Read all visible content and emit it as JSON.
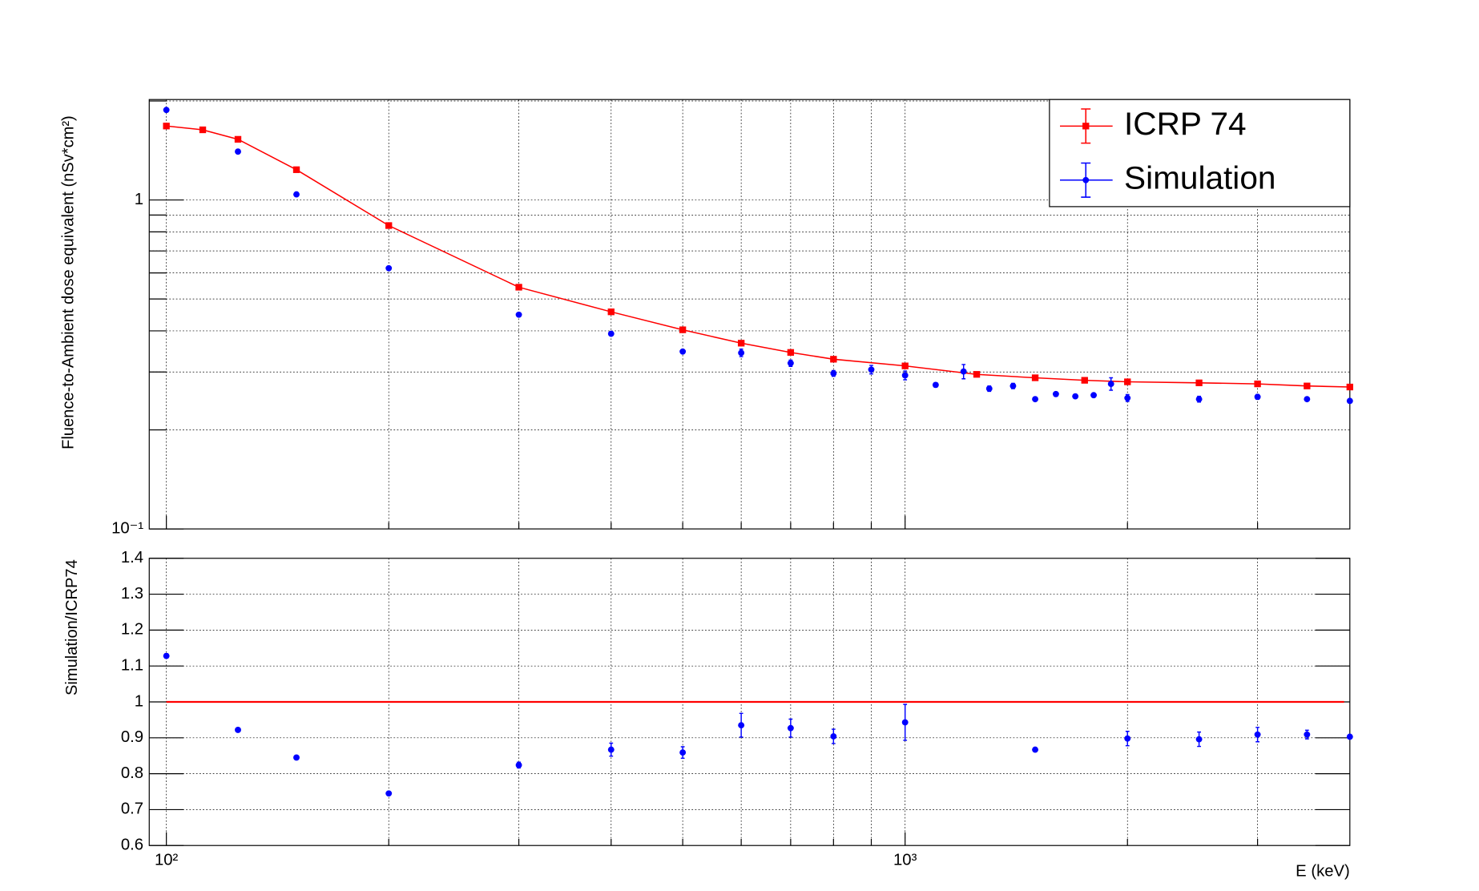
{
  "shared_x": {
    "label": "E (keV)",
    "log": true,
    "xlim": [
      94.8,
      4000
    ],
    "xticks": [
      {
        "value": 100,
        "label": "10²"
      },
      {
        "value": 1000,
        "label": "10³"
      }
    ],
    "xminor": [
      200,
      300,
      400,
      500,
      600,
      700,
      800,
      900,
      2000,
      3000
    ]
  },
  "chart_data": [
    {
      "type": "errorbar",
      "ylabel": "Fluence-to-Ambient dose equivalent (nSv*cm²)",
      "log_y": true,
      "grid": true,
      "legend": "top-right",
      "ylim": [
        0.1,
        2.02
      ],
      "yticks": [
        {
          "value": 0.1,
          "label": "10⁻¹"
        },
        1
      ],
      "yminor": [
        0.2,
        0.3,
        0.4,
        0.5,
        0.6,
        0.7,
        0.8,
        0.9,
        2
      ],
      "series": [
        {
          "name": "ICRP 74",
          "color": "#ff0000",
          "marker": "square",
          "line": true,
          "x": [
            100,
            112,
            125,
            150,
            200,
            300,
            400,
            500,
            600,
            700,
            800,
            1000,
            1250,
            1500,
            1750,
            2000,
            2500,
            3000,
            3500,
            4000
          ],
          "values": [
            1.678,
            1.634,
            1.529,
            1.236,
            0.836,
            0.543,
            0.457,
            0.403,
            0.367,
            0.344,
            0.328,
            0.313,
            0.295,
            0.288,
            0.283,
            0.28,
            0.278,
            0.276,
            0.272,
            0.27
          ]
        },
        {
          "name": "Simulation",
          "color": "#0000ff",
          "marker": "circle",
          "line": false,
          "x": [
            100,
            125,
            150,
            200,
            300,
            400,
            500,
            600,
            700,
            800,
            900,
            1000,
            1100,
            1200,
            1300,
            1400,
            1500,
            1600,
            1700,
            1800,
            1900,
            2000,
            2500,
            3000,
            3500,
            4000
          ],
          "values": [
            1.878,
            1.403,
            1.04,
            0.62,
            0.448,
            0.392,
            0.346,
            0.343,
            0.319,
            0.297,
            0.305,
            0.293,
            0.274,
            0.301,
            0.267,
            0.272,
            0.248,
            0.257,
            0.253,
            0.255,
            0.276,
            0.25,
            0.248,
            0.252,
            0.248,
            0.245
          ],
          "errors": [
            0.01,
            0.008,
            0.005,
            0.004,
            0.003,
            0.005,
            0.004,
            0.009,
            0.007,
            0.006,
            0.009,
            0.009,
            0.004,
            0.015,
            0.005,
            0.005,
            0.003,
            0.003,
            0.003,
            0.003,
            0.012,
            0.006,
            0.005,
            0.004,
            0.003,
            0.003
          ]
        }
      ]
    },
    {
      "type": "errorbar",
      "ylabel": "Simulation/ICRP74",
      "log_y": false,
      "grid": true,
      "ylim": [
        0.6,
        1.4
      ],
      "yticks": [
        0.6,
        0.7,
        0.8,
        0.9,
        1,
        1.1,
        1.2,
        1.3,
        1.4
      ],
      "reference": {
        "value": 1,
        "color": "#ff0000"
      },
      "series": [
        {
          "color": "#0000ff",
          "marker": "circle",
          "line": false,
          "x": [
            100,
            125,
            150,
            200,
            300,
            400,
            500,
            600,
            700,
            800,
            1000,
            1500,
            2000,
            2500,
            3000,
            3500,
            4000
          ],
          "values": [
            1.128,
            0.922,
            0.845,
            0.745,
            0.824,
            0.867,
            0.859,
            0.935,
            0.927,
            0.904,
            0.943,
            0.867,
            0.898,
            0.896,
            0.909,
            0.909,
            0.903
          ],
          "errors": [
            0.006,
            0.004,
            0.004,
            0.004,
            0.008,
            0.018,
            0.016,
            0.033,
            0.025,
            0.02,
            0.05,
            0.004,
            0.02,
            0.02,
            0.02,
            0.012,
            0.005
          ]
        }
      ]
    }
  ]
}
